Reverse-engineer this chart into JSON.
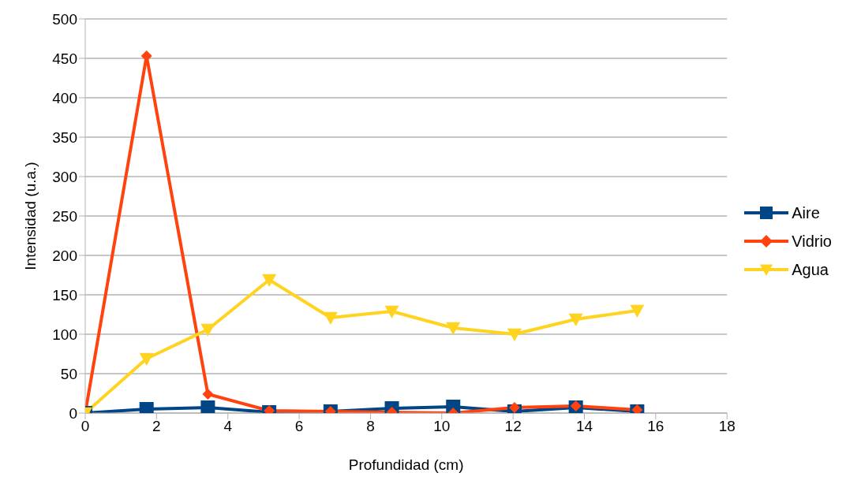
{
  "chart_data": {
    "type": "line",
    "xlabel": "Profundidad (cm)",
    "ylabel": "Intensidad (u.a.)",
    "x": [
      0,
      1.72,
      3.44,
      5.16,
      6.88,
      8.6,
      10.32,
      12.04,
      13.76,
      15.48
    ],
    "series": [
      {
        "name": "Aire",
        "color": "#004586",
        "marker": "square",
        "values": [
          0,
          5,
          7,
          1,
          2,
          6,
          8,
          2,
          7,
          2
        ]
      },
      {
        "name": "Vidrio",
        "color": "#ff420e",
        "marker": "diamond",
        "values": [
          0,
          453,
          24,
          3,
          2,
          1,
          0,
          7,
          9,
          4
        ]
      },
      {
        "name": "Agua",
        "color": "#ffd320",
        "marker": "triangle-down",
        "values": [
          0,
          69,
          106,
          169,
          121,
          129,
          108,
          100,
          119,
          130
        ]
      }
    ],
    "xlim": [
      0,
      18
    ],
    "xticks": [
      0,
      2,
      4,
      6,
      8,
      10,
      12,
      14,
      16,
      18
    ],
    "ylim": [
      0,
      500
    ],
    "yticks": [
      0,
      50,
      100,
      150,
      200,
      250,
      300,
      350,
      400,
      450,
      500
    ],
    "grid": "y",
    "legend": "right"
  }
}
